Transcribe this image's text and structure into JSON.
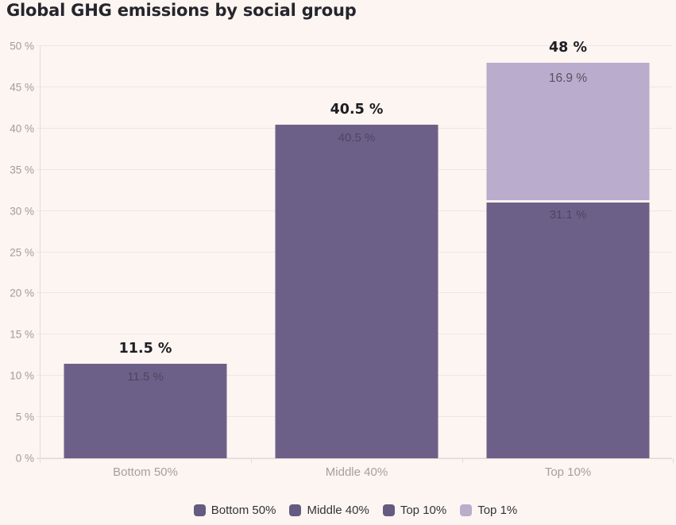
{
  "title": "Global GHG emissions by social group",
  "colors": {
    "background": "#fcf5f1",
    "gridline": "#ede6e2",
    "axis": "#e3dcd8",
    "bar_dark": "#6d6088",
    "bar_light": "#b9accc",
    "title_text": "#25252d",
    "tick_text": "#a39b95",
    "value_label_text": "#1d1d23",
    "legend_text": "#33333a"
  },
  "chart_data": {
    "type": "bar",
    "stacked": true,
    "title": "Global GHG emissions by social group",
    "categories": [
      "Bottom 50%",
      "Middle 40%",
      "Top 10%"
    ],
    "ylim": [
      0,
      50
    ],
    "ytick_step": 5,
    "ytick_suffix": " %",
    "grid": true,
    "legend_position": "bottom",
    "bars": [
      {
        "category": "Bottom 50%",
        "total": 11.5,
        "total_label": "11.5 %",
        "segments": [
          {
            "name": "Bottom 50%",
            "value": 11.5,
            "color": "#6d6088",
            "label": "11.5 %",
            "label_emphasis": "faint"
          }
        ]
      },
      {
        "category": "Middle 40%",
        "total": 40.5,
        "total_label": "40.5 %",
        "segments": [
          {
            "name": "Middle 40%",
            "value": 40.5,
            "color": "#6d6088",
            "label": "40.5 %",
            "label_emphasis": "faint"
          }
        ]
      },
      {
        "category": "Top 10%",
        "total": 48,
        "total_label": "48 %",
        "segments": [
          {
            "name": "Top 10%",
            "value": 31.1,
            "color": "#6d6088",
            "label": "31.1 %",
            "label_emphasis": "faint"
          },
          {
            "name": "Top 1%",
            "value": 16.9,
            "color": "#b9accc",
            "label": "16.9 %",
            "label_emphasis": "visible"
          }
        ]
      }
    ],
    "legend": [
      {
        "label": "Bottom 50%",
        "color": "#655a80"
      },
      {
        "label": "Middle 40%",
        "color": "#655a80"
      },
      {
        "label": "Top 10%",
        "color": "#655a80"
      },
      {
        "label": "Top 1%",
        "color": "#b9accc"
      }
    ]
  }
}
